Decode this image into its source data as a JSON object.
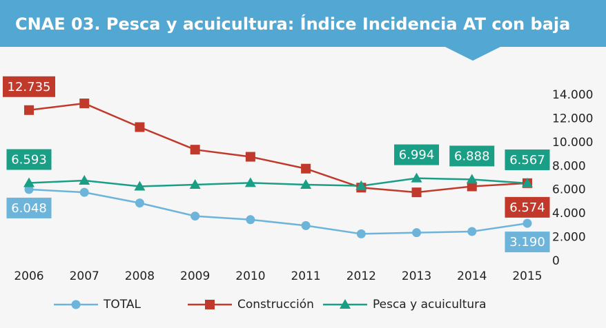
{
  "chart_data": {
    "type": "line",
    "title": "CNAE 03. Pesca y acuicultura: Índice Incidencia AT con baja",
    "categories": [
      "2006",
      "2007",
      "2008",
      "2009",
      "2010",
      "2011",
      "2012",
      "2013",
      "2014",
      "2015"
    ],
    "series": [
      {
        "name": "TOTAL",
        "color": "#6db4da",
        "marker": "circle",
        "values": [
          6048,
          5800,
          4900,
          3800,
          3500,
          3000,
          2300,
          2400,
          2500,
          3190
        ],
        "value_labels": [
          "6.048",
          null,
          null,
          null,
          null,
          null,
          null,
          null,
          null,
          "3.190"
        ]
      },
      {
        "name": "Construcción",
        "color": "#c0392b",
        "marker": "square",
        "values": [
          12735,
          13300,
          11300,
          9400,
          8800,
          7800,
          6200,
          5800,
          6300,
          6574
        ],
        "value_labels": [
          "12.735",
          null,
          null,
          null,
          null,
          null,
          null,
          null,
          null,
          "6.574"
        ]
      },
      {
        "name": "Pesca y acuicultura",
        "color": "#1a9e86",
        "marker": "triangle",
        "values": [
          6593,
          6800,
          6300,
          6450,
          6600,
          6450,
          6350,
          6994,
          6888,
          6567
        ],
        "value_labels": [
          "6.593",
          null,
          null,
          null,
          null,
          null,
          null,
          "6.994",
          "6.888",
          "6.567"
        ]
      }
    ],
    "ylim": [
      0,
      14000
    ],
    "yticks": [
      0,
      {
        "value": 2000,
        "label": "2.000"
      },
      {
        "value": 4000,
        "label": "4.000"
      },
      {
        "value": 6000,
        "label": "6.000"
      },
      {
        "value": 8000,
        "label": "8.000"
      },
      {
        "value": 10000,
        "label": "10.000"
      },
      {
        "value": 12000,
        "label": "12.000"
      },
      {
        "value": 14000,
        "label": "14.000"
      }
    ],
    "legend": "bottom"
  }
}
